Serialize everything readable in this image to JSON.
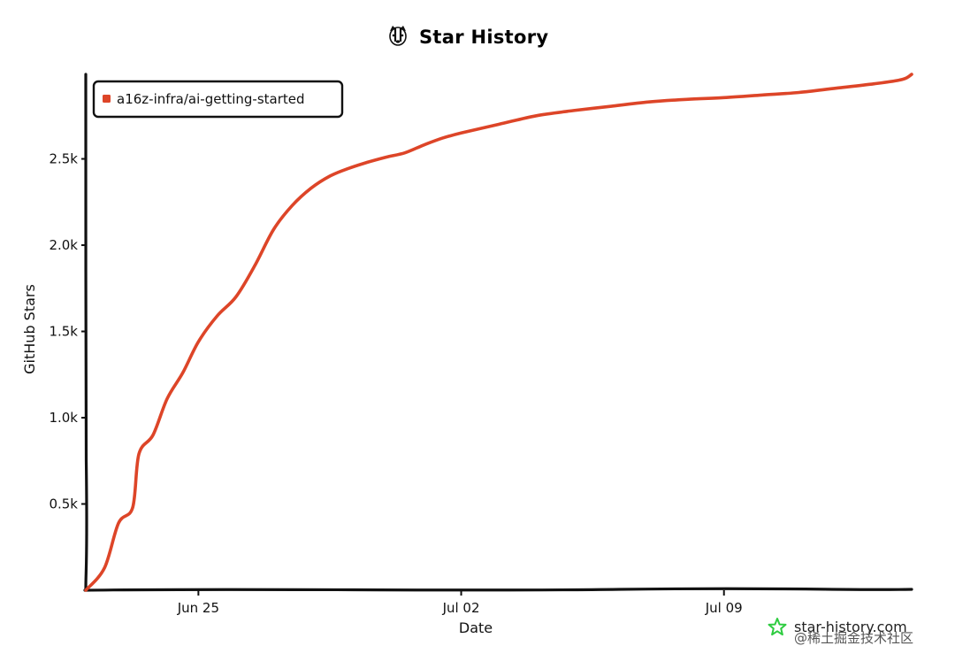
{
  "title": "Star History",
  "brand": {
    "text": "star-history.com",
    "icon": "star-outline-icon",
    "color": "#2ecc40"
  },
  "watermark": "@稀土掘金技术社区",
  "logo_icon": "badger-icon",
  "chart_data": {
    "type": "line",
    "title": "Star History",
    "xlabel": "Date",
    "ylabel": "GitHub Stars",
    "x_tick_labels": [
      "Jun 25",
      "Jul 02",
      "Jul 09"
    ],
    "x_tick_dates": [
      "2023-06-25",
      "2023-07-02",
      "2023-07-09"
    ],
    "y_ticks": [
      500,
      1000,
      1500,
      2000,
      2500
    ],
    "y_tick_labels": [
      "0.5k",
      "1.0k",
      "1.5k",
      "2.0k",
      "2.5k"
    ],
    "xlim": [
      "2023-06-22",
      "2023-07-14"
    ],
    "ylim": [
      0,
      2990
    ],
    "grid": false,
    "legend_position": "top-left",
    "series": [
      {
        "name": "a16z-infra/ai-getting-started",
        "color": "#dd4528",
        "points": [
          [
            "2023-06-22T00:00",
            0
          ],
          [
            "2023-06-22T12:00",
            130
          ],
          [
            "2023-06-22T21:00",
            390
          ],
          [
            "2023-06-23T06:00",
            480
          ],
          [
            "2023-06-23T10:00",
            790
          ],
          [
            "2023-06-23T19:00",
            900
          ],
          [
            "2023-06-24T04:00",
            1110
          ],
          [
            "2023-06-24T14:00",
            1260
          ],
          [
            "2023-06-25T00:00",
            1440
          ],
          [
            "2023-06-25T12:00",
            1590
          ],
          [
            "2023-06-26T00:00",
            1700
          ],
          [
            "2023-06-26T12:00",
            1880
          ],
          [
            "2023-06-27T00:00",
            2090
          ],
          [
            "2023-06-27T12:00",
            2230
          ],
          [
            "2023-06-28T00:00",
            2330
          ],
          [
            "2023-06-28T12:00",
            2400
          ],
          [
            "2023-06-29T00:00",
            2445
          ],
          [
            "2023-06-29T12:00",
            2480
          ],
          [
            "2023-06-30T00:00",
            2510
          ],
          [
            "2023-06-30T12:00",
            2535
          ],
          [
            "2023-07-01T00:00",
            2580
          ],
          [
            "2023-07-01T12:00",
            2620
          ],
          [
            "2023-07-02T00:00",
            2650
          ],
          [
            "2023-07-03T00:00",
            2700
          ],
          [
            "2023-07-04T00:00",
            2750
          ],
          [
            "2023-07-05T00:00",
            2780
          ],
          [
            "2023-07-06T00:00",
            2805
          ],
          [
            "2023-07-07T00:00",
            2830
          ],
          [
            "2023-07-08T00:00",
            2845
          ],
          [
            "2023-07-09T00:00",
            2855
          ],
          [
            "2023-07-10T00:00",
            2870
          ],
          [
            "2023-07-11T00:00",
            2885
          ],
          [
            "2023-07-12T00:00",
            2910
          ],
          [
            "2023-07-13T00:00",
            2935
          ],
          [
            "2023-07-13T18:00",
            2960
          ],
          [
            "2023-07-14T00:00",
            2990
          ]
        ]
      }
    ]
  }
}
